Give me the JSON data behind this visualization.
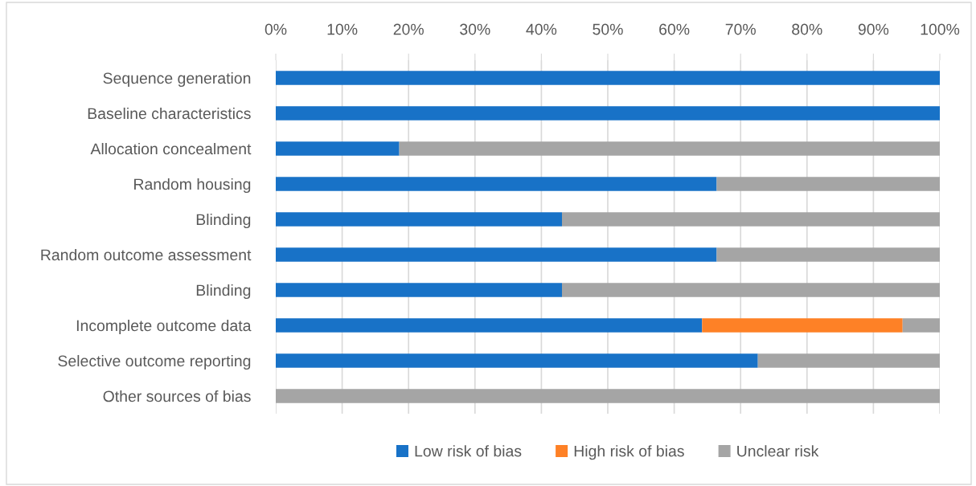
{
  "chart_data": {
    "type": "bar",
    "orientation": "horizontal",
    "stacked": true,
    "categories": [
      "Sequence generation",
      "Baseline characteristics",
      "Allocation concealment",
      "Random housing",
      "Blinding",
      "Random outcome assessment",
      "Blinding",
      "Incomplete outcome data",
      "Selective outcome reporting",
      "Other sources of bias"
    ],
    "series": [
      {
        "name": "Low risk of bias",
        "color": "#1872c7",
        "values": [
          100,
          100,
          18.6,
          66.4,
          43.1,
          66.4,
          43.1,
          64.2,
          72.6,
          null
        ]
      },
      {
        "name": "High risk of bias",
        "color": "#fe8126",
        "values": [
          null,
          null,
          null,
          null,
          null,
          null,
          null,
          30.2,
          null,
          null
        ]
      },
      {
        "name": "Unclear risk",
        "color": "#a5a5a5",
        "values": [
          null,
          null,
          81.4,
          33.6,
          56.9,
          33.6,
          56.9,
          5.6,
          27.4,
          100
        ]
      }
    ],
    "xlim": [
      0,
      100
    ],
    "xticks": [
      {
        "value": 0,
        "label": "0%"
      },
      {
        "value": 10,
        "label": "10%"
      },
      {
        "value": 20,
        "label": "20%"
      },
      {
        "value": 30,
        "label": "30%"
      },
      {
        "value": 40,
        "label": "40%"
      },
      {
        "value": 50,
        "label": "50%"
      },
      {
        "value": 60,
        "label": "60%"
      },
      {
        "value": 70,
        "label": "70%"
      },
      {
        "value": 80,
        "label": "80%"
      },
      {
        "value": 90,
        "label": "90%"
      },
      {
        "value": 100,
        "label": "100%"
      }
    ],
    "grid": "x",
    "legend": "bottom"
  }
}
